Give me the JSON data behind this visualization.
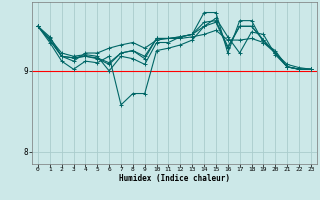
{
  "xlabel": "Humidex (Indice chaleur)",
  "ylabel": "",
  "bg_color": "#cce8e8",
  "grid_color": "#aacccc",
  "line_color": "#006666",
  "xlim": [
    -0.5,
    23.5
  ],
  "ylim": [
    7.85,
    9.85
  ],
  "yticks": [
    8,
    9
  ],
  "xticks": [
    0,
    1,
    2,
    3,
    4,
    5,
    6,
    7,
    8,
    9,
    10,
    11,
    12,
    13,
    14,
    15,
    16,
    17,
    18,
    19,
    20,
    21,
    22,
    23
  ],
  "red_line_y": 9.0,
  "series": [
    [
      0,
      9.55,
      1,
      9.42,
      2,
      9.18,
      3,
      9.12,
      4,
      9.22,
      5,
      9.22,
      6,
      9.28,
      7,
      9.32,
      8,
      9.35,
      9,
      9.28,
      10,
      9.38,
      11,
      9.4,
      12,
      9.4,
      13,
      9.42,
      14,
      9.45,
      15,
      9.5,
      16,
      9.38,
      17,
      9.38,
      18,
      9.4,
      19,
      9.35,
      20,
      9.22,
      21,
      9.08,
      22,
      9.04,
      23,
      9.02
    ],
    [
      0,
      9.55,
      1,
      9.35,
      2,
      9.12,
      3,
      9.02,
      4,
      9.12,
      5,
      9.1,
      6,
      9.18,
      7,
      8.58,
      8,
      8.72,
      9,
      8.72,
      10,
      9.25,
      11,
      9.28,
      12,
      9.32,
      13,
      9.38,
      14,
      9.55,
      15,
      9.65,
      16,
      9.42,
      17,
      9.22,
      18,
      9.48,
      19,
      9.45,
      20,
      9.2,
      21,
      9.05,
      22,
      9.02,
      23,
      9.02
    ],
    [
      0,
      9.55,
      1,
      9.4,
      2,
      9.22,
      3,
      9.18,
      4,
      9.2,
      5,
      9.18,
      6,
      9.0,
      7,
      9.18,
      8,
      9.15,
      9,
      9.08,
      10,
      9.35,
      11,
      9.35,
      12,
      9.42,
      13,
      9.45,
      14,
      9.72,
      15,
      9.72,
      16,
      9.22,
      17,
      9.62,
      18,
      9.62,
      19,
      9.35,
      20,
      9.25,
      21,
      9.05,
      22,
      9.02,
      23,
      9.02
    ],
    [
      0,
      9.55,
      1,
      9.38,
      2,
      9.18,
      3,
      9.16,
      4,
      9.18,
      5,
      9.15,
      6,
      9.08,
      7,
      9.22,
      8,
      9.25,
      9,
      9.15,
      10,
      9.4,
      11,
      9.4,
      12,
      9.42,
      13,
      9.45,
      14,
      9.6,
      15,
      9.62,
      16,
      9.3,
      17,
      9.55,
      18,
      9.55,
      19,
      9.38,
      20,
      9.22,
      21,
      9.05,
      22,
      9.02,
      23,
      9.02
    ],
    [
      0,
      9.55,
      1,
      9.38,
      2,
      9.18,
      3,
      9.16,
      4,
      9.18,
      5,
      9.16,
      6,
      9.1,
      7,
      9.22,
      8,
      9.25,
      9,
      9.18,
      10,
      9.4,
      11,
      9.4,
      12,
      9.42,
      13,
      9.45,
      14,
      9.55,
      15,
      9.6,
      16,
      9.28,
      17,
      9.55,
      18,
      9.55,
      19,
      9.38,
      20,
      9.22,
      21,
      9.05,
      22,
      9.02,
      23,
      9.02
    ]
  ]
}
